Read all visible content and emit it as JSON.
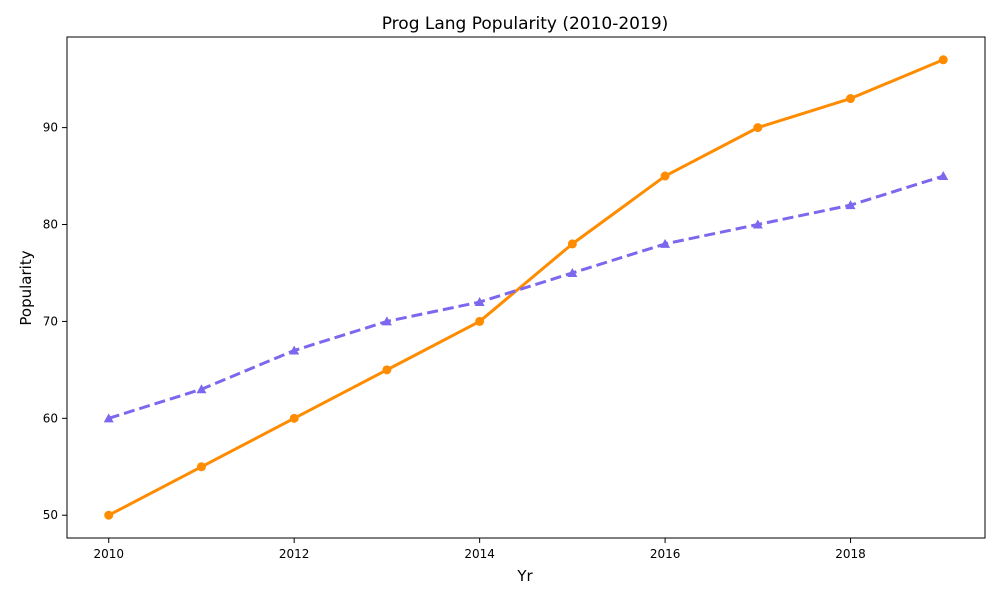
{
  "chart_data": {
    "type": "line",
    "title": "Prog Lang Popularity (2010-2019)",
    "xlabel": "Yr",
    "ylabel": "Popularity",
    "x": [
      2010,
      2011,
      2012,
      2013,
      2014,
      2015,
      2016,
      2017,
      2018,
      2019
    ],
    "xlim": [
      2009.55,
      2019.45
    ],
    "ylim": [
      47.65,
      99.35
    ],
    "xticks": [
      2010,
      2012,
      2014,
      2016,
      2018
    ],
    "yticks": [
      50,
      60,
      70,
      80,
      90
    ],
    "grid": false,
    "legend": "none",
    "series": [
      {
        "values": [
          50,
          55,
          60,
          65,
          70,
          78,
          85,
          90,
          93,
          97
        ],
        "color": "#ff8c00",
        "line_style": "solid",
        "marker": "circle"
      },
      {
        "values": [
          60,
          63,
          67,
          70,
          72,
          75,
          78,
          80,
          82,
          85
        ],
        "color": "#7b68ee",
        "line_style": "dashed",
        "marker": "triangle"
      }
    ]
  }
}
